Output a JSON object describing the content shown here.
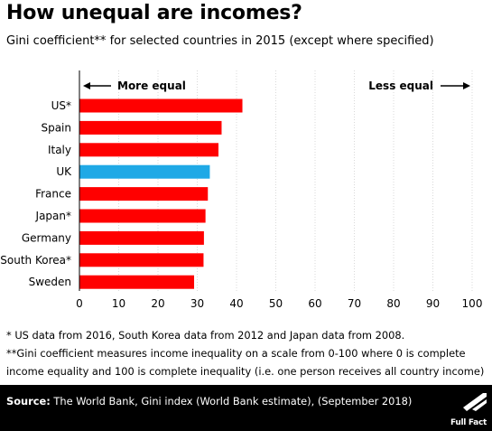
{
  "header": {
    "title": "How unequal are incomes?",
    "subtitle": "Gini coefficient** for selected countries in 2015 (except where specified)"
  },
  "chart_data": {
    "type": "bar",
    "orientation": "horizontal",
    "title": "How unequal are incomes?",
    "subtitle": "Gini coefficient** for selected countries in 2015 (except where specified)",
    "categories": [
      "US*",
      "Spain",
      "Italy",
      "UK",
      "France",
      "Japan*",
      "Germany",
      "South Korea*",
      "Sweden"
    ],
    "values": [
      41.5,
      36.2,
      35.4,
      33.2,
      32.7,
      32.1,
      31.7,
      31.6,
      29.2
    ],
    "bar_colors": [
      "#ff0000",
      "#ff0000",
      "#ff0000",
      "#1fa9e6",
      "#ff0000",
      "#ff0000",
      "#ff0000",
      "#ff0000",
      "#ff0000"
    ],
    "xlim": [
      0,
      100
    ],
    "xticks": [
      0,
      10,
      20,
      30,
      40,
      50,
      60,
      70,
      80,
      90,
      100
    ],
    "grid": true,
    "annotations": {
      "left": "More equal",
      "right": "Less equal"
    }
  },
  "notes": [
    "* US data from 2016, South Korea data from 2012 and Japan data from 2008.",
    "**Gini coefficient measures income inequality on a scale from 0-100 where 0 is complete",
    "income equality and 100 is complete inequality (i.e. one person receives all country income)"
  ],
  "footer": {
    "source_label": "Source:",
    "source_text": " The World Bank, Gini index (World Bank estimate), (September 2018)",
    "logo_text": "Full Fact",
    "logo_icon": "full-fact-logo-icon"
  }
}
